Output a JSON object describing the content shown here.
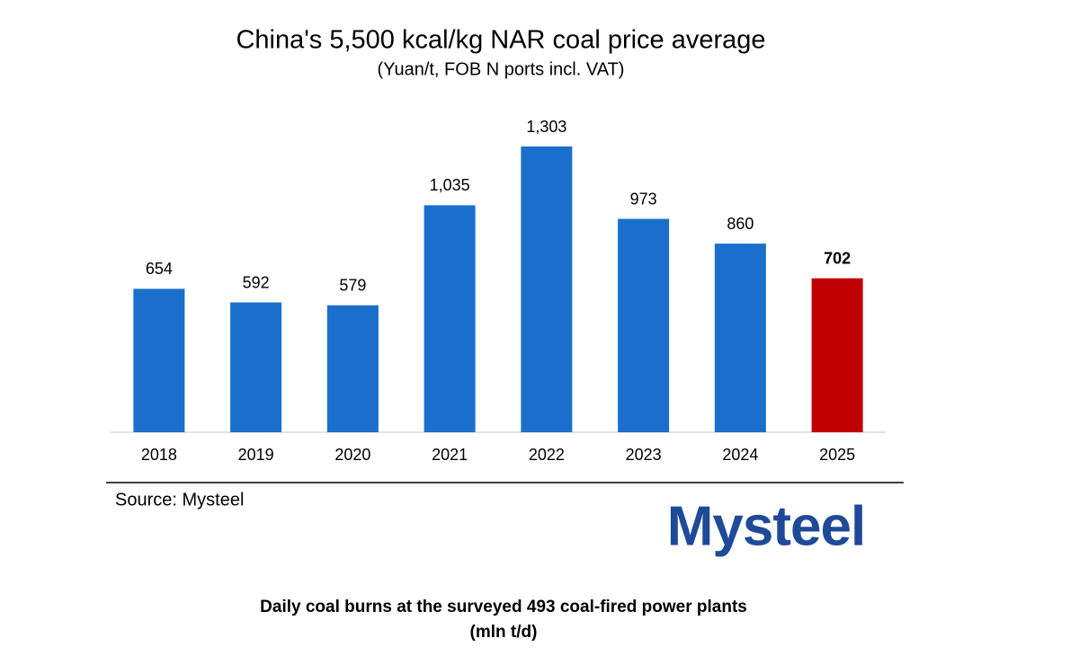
{
  "chart_data": {
    "type": "bar",
    "title": "China's 5,500 kcal/kg NAR coal price average",
    "subtitle": "(Yuan/t, FOB N ports incl. VAT)",
    "categories": [
      "2018",
      "2019",
      "2020",
      "2021",
      "2022",
      "2023",
      "2024",
      "2025"
    ],
    "values": [
      654,
      592,
      579,
      1035,
      1303,
      973,
      860,
      702
    ],
    "value_labels": [
      "654",
      "592",
      "579",
      "1,035",
      "1,303",
      "973",
      "860",
      "702"
    ],
    "colors": [
      "#1a6fcc",
      "#1a6fcc",
      "#1a6fcc",
      "#1a6fcc",
      "#1a6fcc",
      "#1a6fcc",
      "#1a6fcc",
      "#c00000"
    ],
    "value_label_bold": [
      false,
      false,
      false,
      false,
      false,
      false,
      false,
      true
    ],
    "source": "Source: Mysteel"
  },
  "logo": "Mysteel",
  "next_chart": {
    "title": "Daily coal burns at the surveyed 493 coal-fired power plants",
    "subtitle": "(mln t/d)"
  }
}
